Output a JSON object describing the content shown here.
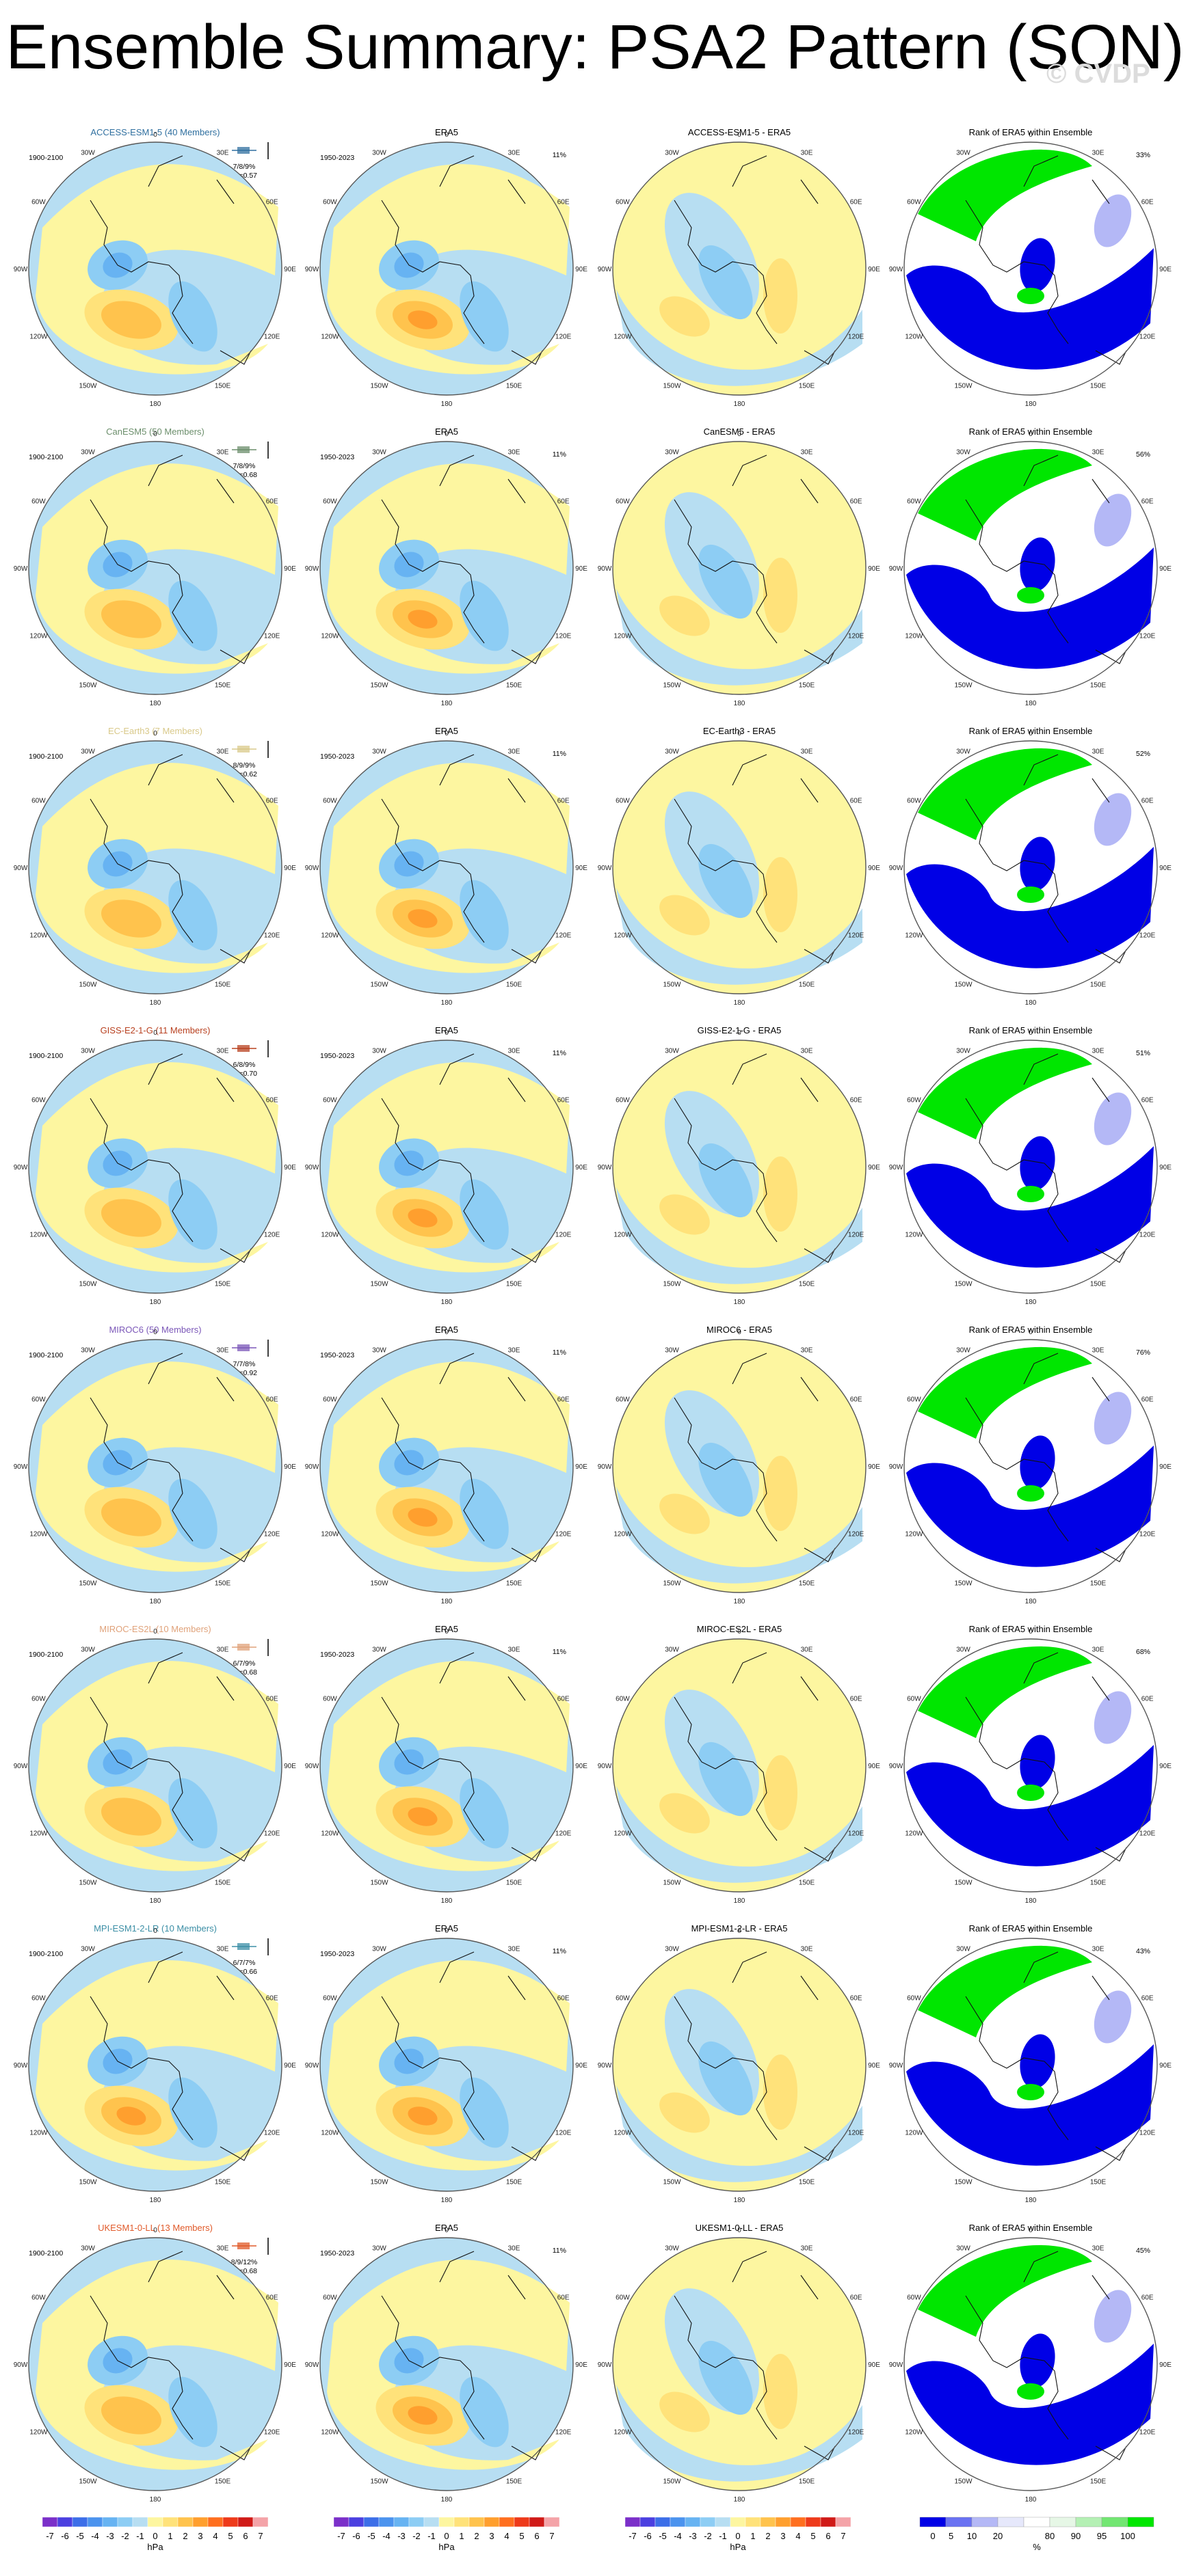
{
  "title": "Ensemble Summary: PSA2 Pattern (SON)",
  "watermark": "© CVDP",
  "column_titles": {
    "era5": "ERA5",
    "rank": "Rank of ERA5 within Ensemble"
  },
  "period_labels": {
    "model": "1900-2100",
    "obs": "1950-2023"
  },
  "lon_labels": [
    "0",
    "30E",
    "60E",
    "90E",
    "120E",
    "150E",
    "180",
    "150W",
    "120W",
    "90W",
    "60W",
    "30W"
  ],
  "colors": {
    "hpa": [
      "#7b2fc9",
      "#4b3fe0",
      "#3c6ee8",
      "#4b93ee",
      "#67b3f2",
      "#8dcdf4",
      "#b7def2",
      "#fdf6a0",
      "#ffe27a",
      "#ffc34d",
      "#ff9f2e",
      "#ff6f1f",
      "#ee3a1a",
      "#d01a17",
      "#f4a3a8"
    ],
    "pct": [
      "#0000e6",
      "#6a72f2",
      "#b4b8f6",
      "#e6e8fb",
      "#ffffff",
      "#e6f7e6",
      "#b4f0b4",
      "#72e672",
      "#00e600"
    ],
    "land": "#111111",
    "frame": "#555555"
  },
  "chart_data": [
    {
      "row": 1,
      "model": "ACCESS-ESM1-5 (40 Members)",
      "model_short": "ACCESS-ESM1-5",
      "color": "#2f6f9f",
      "rank_stat": "7/8/9%",
      "r_stat": "r=0.57",
      "pct": "33%",
      "era5_pct": "11%"
    },
    {
      "row": 2,
      "model": "CanESM5 (50 Members)",
      "model_short": "CanESM5",
      "color": "#6b8e6b",
      "rank_stat": "7/8/9%",
      "r_stat": "r=0.68",
      "pct": "56%",
      "era5_pct": "11%"
    },
    {
      "row": 3,
      "model": "EC-Earth3 (7 Members)",
      "model_short": "EC-Earth3",
      "color": "#d9c98a",
      "rank_stat": "8/9/9%",
      "r_stat": "r=0.62",
      "pct": "52%",
      "era5_pct": "11%"
    },
    {
      "row": 4,
      "model": "GISS-E2-1-G (11 Members)",
      "model_short": "GISS-E2-1-G",
      "color": "#b8401f",
      "rank_stat": "6/8/9%",
      "r_stat": "r=0.70",
      "pct": "51%",
      "era5_pct": "11%"
    },
    {
      "row": 5,
      "model": "MIROC6 (50 Members)",
      "model_short": "MIROC6",
      "color": "#7b57b8",
      "rank_stat": "7/7/8%",
      "r_stat": "r=0.92",
      "pct": "76%",
      "era5_pct": "11%"
    },
    {
      "row": 6,
      "model": "MIROC-ES2L (10 Members)",
      "model_short": "MIROC-ES2L",
      "color": "#e0a27a",
      "rank_stat": "6/7/9%",
      "r_stat": "r=0.68",
      "pct": "68%",
      "era5_pct": "11%"
    },
    {
      "row": 7,
      "model": "MPI-ESM1-2-LR (10 Members)",
      "model_short": "MPI-ESM1-2-LR",
      "color": "#3b8ea5",
      "rank_stat": "6/7/7%",
      "r_stat": "r=0.66",
      "pct": "43%",
      "era5_pct": "11%"
    },
    {
      "row": 8,
      "model": "UKESM1-0-LL (13 Members)",
      "model_short": "UKESM1-0-LL",
      "color": "#e05a2a",
      "rank_stat": "8/9/12%",
      "r_stat": "r=0.68",
      "pct": "45%",
      "era5_pct": "11%"
    }
  ],
  "colorbars": {
    "hpa": {
      "unit": "hPa",
      "ticks": [
        "-7",
        "-6",
        "-5",
        "-4",
        "-3",
        "-2",
        "-1",
        "0",
        "1",
        "2",
        "3",
        "4",
        "5",
        "6",
        "7"
      ]
    },
    "pct": {
      "unit": "%",
      "ticks": [
        "0",
        "5",
        "10",
        "20",
        "80",
        "90",
        "95",
        "100"
      ]
    }
  }
}
